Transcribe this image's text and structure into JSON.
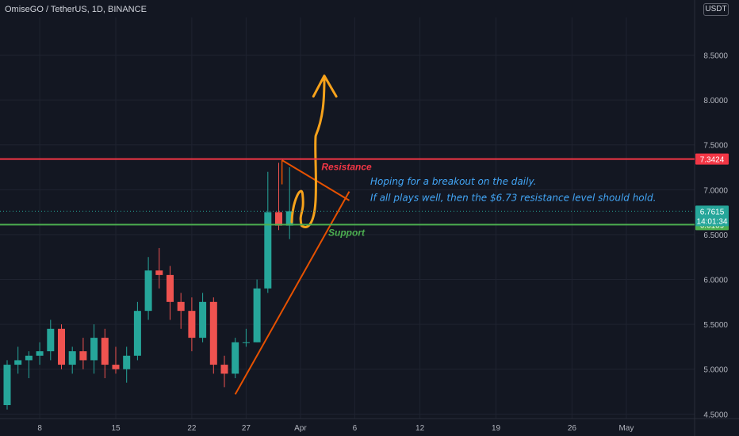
{
  "header": {
    "title": "OmiseGO / TetherUS, 1D, BINANCE"
  },
  "currency": "USDT",
  "colors": {
    "background": "#131722",
    "bull": "#26a69a",
    "bear": "#ef5350",
    "resistance": "#f23645",
    "support": "#4caf50",
    "annotation": "#42a5f5",
    "projection": "#f7a21b",
    "trendline": "#e65100"
  },
  "chart_data": {
    "type": "candlestick",
    "ylim": [
      4.45,
      8.92
    ],
    "y_ticks": [
      "4.5000",
      "5.0000",
      "5.5000",
      "6.0000",
      "6.5000",
      "7.0000",
      "7.5000",
      "8.0000",
      "8.5000"
    ],
    "x_ticks": [
      {
        "label": "8",
        "day": 8
      },
      {
        "label": "15",
        "day": 15
      },
      {
        "label": "22",
        "day": 22
      },
      {
        "label": "27",
        "day": 27
      },
      {
        "label": "Apr",
        "day": 32
      },
      {
        "label": "6",
        "day": 37
      },
      {
        "label": "12",
        "day": 43
      },
      {
        "label": "19",
        "day": 50
      },
      {
        "label": "26",
        "day": 57
      },
      {
        "label": "May",
        "day": 62
      }
    ],
    "candles": [
      {
        "day": 5,
        "o": 4.6,
        "h": 5.1,
        "l": 4.55,
        "c": 5.05
      },
      {
        "day": 6,
        "o": 5.05,
        "h": 5.25,
        "l": 4.95,
        "c": 5.1
      },
      {
        "day": 7,
        "o": 5.1,
        "h": 5.2,
        "l": 4.9,
        "c": 5.15
      },
      {
        "day": 8,
        "o": 5.15,
        "h": 5.3,
        "l": 5.05,
        "c": 5.2
      },
      {
        "day": 9,
        "o": 5.2,
        "h": 5.55,
        "l": 5.1,
        "c": 5.45
      },
      {
        "day": 10,
        "o": 5.45,
        "h": 5.5,
        "l": 5.0,
        "c": 5.05
      },
      {
        "day": 11,
        "o": 5.05,
        "h": 5.25,
        "l": 4.95,
        "c": 5.2
      },
      {
        "day": 12,
        "o": 5.2,
        "h": 5.35,
        "l": 5.0,
        "c": 5.1
      },
      {
        "day": 13,
        "o": 5.1,
        "h": 5.5,
        "l": 4.95,
        "c": 5.35
      },
      {
        "day": 14,
        "o": 5.35,
        "h": 5.45,
        "l": 4.9,
        "c": 5.05
      },
      {
        "day": 15,
        "o": 5.05,
        "h": 5.25,
        "l": 4.95,
        "c": 5.0
      },
      {
        "day": 16,
        "o": 5.0,
        "h": 5.25,
        "l": 4.85,
        "c": 5.15
      },
      {
        "day": 17,
        "o": 5.15,
        "h": 5.75,
        "l": 5.1,
        "c": 5.65
      },
      {
        "day": 18,
        "o": 5.65,
        "h": 6.25,
        "l": 5.55,
        "c": 6.1
      },
      {
        "day": 19,
        "o": 6.1,
        "h": 6.35,
        "l": 5.9,
        "c": 6.05
      },
      {
        "day": 20,
        "o": 6.05,
        "h": 6.15,
        "l": 5.55,
        "c": 5.75
      },
      {
        "day": 21,
        "o": 5.75,
        "h": 5.85,
        "l": 5.45,
        "c": 5.65
      },
      {
        "day": 22,
        "o": 5.65,
        "h": 5.8,
        "l": 5.2,
        "c": 5.35
      },
      {
        "day": 23,
        "o": 5.35,
        "h": 5.85,
        "l": 5.3,
        "c": 5.75
      },
      {
        "day": 24,
        "o": 5.75,
        "h": 5.8,
        "l": 4.95,
        "c": 5.05
      },
      {
        "day": 25,
        "o": 5.05,
        "h": 5.15,
        "l": 4.8,
        "c": 4.95
      },
      {
        "day": 26,
        "o": 4.95,
        "h": 5.35,
        "l": 4.9,
        "c": 5.3
      },
      {
        "day": 27,
        "o": 5.3,
        "h": 5.45,
        "l": 5.25,
        "c": 5.3
      },
      {
        "day": 28,
        "o": 5.3,
        "h": 6.0,
        "l": 5.3,
        "c": 5.9
      },
      {
        "day": 29,
        "o": 5.9,
        "h": 7.2,
        "l": 5.85,
        "c": 6.75
      },
      {
        "day": 30,
        "o": 6.75,
        "h": 7.3,
        "l": 6.55,
        "c": 6.6
      },
      {
        "day": 31,
        "o": 6.6,
        "h": 7.25,
        "l": 6.45,
        "c": 6.76
      }
    ],
    "levels": [
      {
        "name": "Resistance",
        "value": 7.3424,
        "badge": "7.3424"
      },
      {
        "name": "Support",
        "value": 6.6109,
        "badge": "6.6109"
      }
    ],
    "last_price": {
      "value": 6.7615,
      "badge": "6.7615",
      "countdown": "14:01:34"
    },
    "annotations": [
      "Hoping for a breakout on the daily.",
      "If all plays well, then the $6.73 resistance level should hold."
    ]
  }
}
